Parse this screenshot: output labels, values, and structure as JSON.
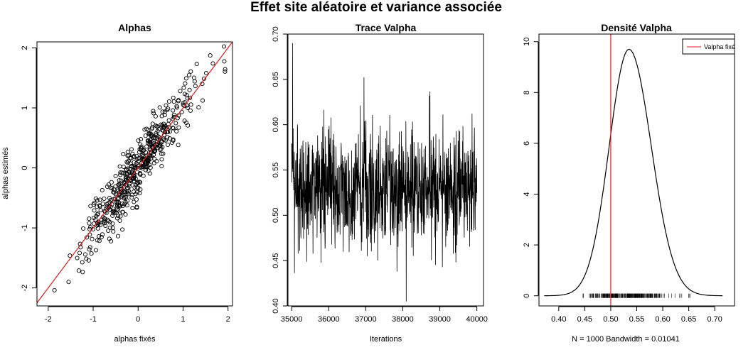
{
  "main_title": "Effet site aléatoire et variance associée",
  "colors": {
    "fit_line": "#e41a1c",
    "ink": "#000000",
    "legend_line": "#e41a1c"
  },
  "chart_data": [
    {
      "type": "scatter",
      "title": "Alphas",
      "xlabel": "alphas fixés",
      "ylabel": "alphas estimés",
      "xlim": [
        -2.25,
        2.1
      ],
      "ylim": [
        -2.3,
        2.1
      ],
      "xticks": [
        -2,
        -1,
        0,
        1,
        2
      ],
      "yticks": [
        -2,
        -1,
        0,
        1,
        2
      ],
      "reference_line": {
        "slope": 1,
        "intercept": 0
      },
      "n_points": 500,
      "marker": "open-circle",
      "points": "generated"
    },
    {
      "type": "line",
      "title": "Trace Valpha",
      "xlabel": "Iterations",
      "ylabel": "",
      "xlim": [
        34900,
        40180
      ],
      "ylim": [
        0.4,
        0.7
      ],
      "xticks": [
        35000,
        36000,
        37000,
        38000,
        39000,
        40000
      ],
      "yticks": [
        0.4,
        0.45,
        0.5,
        0.55,
        0.6,
        0.65,
        0.7
      ],
      "iterations_start": 35000,
      "iterations_end": 40000,
      "mean": 0.53,
      "max": 0.69,
      "min": 0.405
    },
    {
      "type": "line",
      "title": "Densité Valpha",
      "xlabel": "N = 1000   Bandwidth = 0.01041",
      "ylabel": "",
      "xlim": [
        0.362,
        0.738
      ],
      "ylim": [
        -0.4,
        10.3
      ],
      "xticks": [
        0.4,
        0.45,
        0.5,
        0.55,
        0.6,
        0.65,
        0.7
      ],
      "yticks": [
        0,
        2,
        4,
        6,
        8,
        10
      ],
      "density_peak": {
        "x": 0.535,
        "y": 9.7
      },
      "vline": {
        "x": 0.5,
        "label": "Valpha fixé"
      },
      "rug": true,
      "legend": "top-right"
    }
  ]
}
